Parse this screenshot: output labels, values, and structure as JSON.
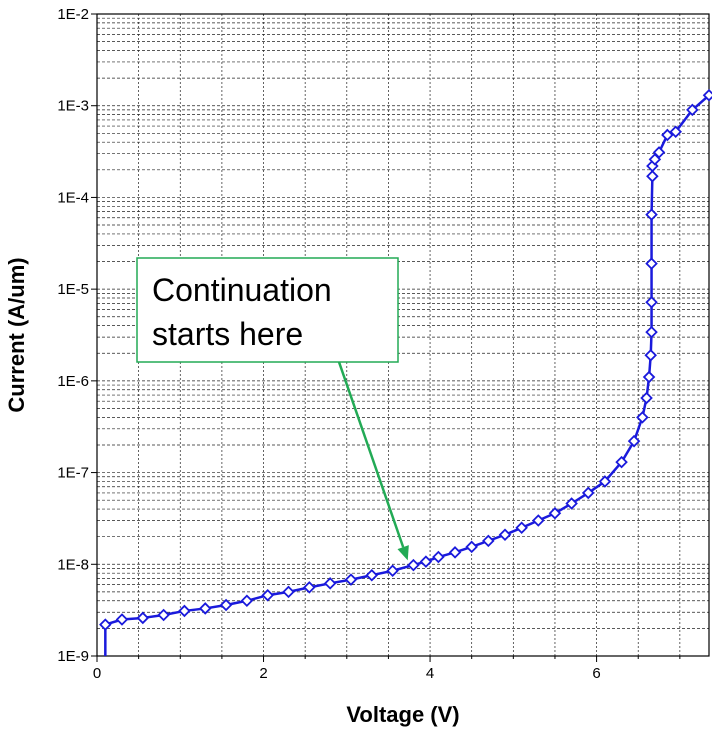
{
  "chart_data": {
    "type": "line",
    "xlabel": "Voltage (V)",
    "ylabel": "Current (A/um)",
    "xlim": [
      0,
      7.35
    ],
    "ylim": [
      1e-09,
      0.01
    ],
    "y_scale": "log",
    "grid": true,
    "x_ticks": [
      0,
      2,
      4,
      6
    ],
    "x_tick_labels": [
      "0",
      "2",
      "4",
      "6"
    ],
    "y_ticks": [
      1e-09,
      1e-08,
      1e-07,
      1e-06,
      1e-05,
      0.0001,
      0.001,
      0.01
    ],
    "y_tick_labels": [
      "1E-9",
      "1E-8",
      "1E-7",
      "1E-6",
      "1E-5",
      "1E-4",
      "1E-3",
      "1E-2"
    ],
    "line_color": "#1a1adc",
    "annotation": {
      "lines": [
        "Continuation",
        "starts here"
      ],
      "box_border_color": "#22aa55",
      "arrow_color": "#22aa55",
      "points_to": {
        "x": 3.78,
        "y": 9.5e-09
      }
    },
    "series": [
      {
        "x": [
          0.1,
          0.1,
          0.3,
          0.55,
          0.8,
          1.05,
          1.3,
          1.55,
          1.8,
          2.05,
          2.3,
          2.55,
          2.8,
          3.05,
          3.3,
          3.55,
          3.8,
          3.95,
          4.1,
          4.3,
          4.5,
          4.7,
          4.9,
          5.1,
          5.3,
          5.5,
          5.7,
          5.9,
          6.1,
          6.3,
          6.45,
          6.55,
          6.6,
          6.63,
          6.65,
          6.66,
          6.66,
          6.66,
          6.66,
          6.67,
          6.67,
          6.7,
          6.75,
          6.85,
          6.95,
          7.15,
          7.35
        ],
        "y": [
          1e-09,
          2.2e-09,
          2.5e-09,
          2.6e-09,
          2.8e-09,
          3.1e-09,
          3.3e-09,
          3.6e-09,
          4e-09,
          4.6e-09,
          5e-09,
          5.6e-09,
          6.2e-09,
          6.8e-09,
          7.6e-09,
          8.5e-09,
          9.8e-09,
          1.07e-08,
          1.2e-08,
          1.35e-08,
          1.55e-08,
          1.8e-08,
          2.1e-08,
          2.5e-08,
          3e-08,
          3.6e-08,
          4.6e-08,
          6e-08,
          8e-08,
          1.3e-07,
          2.2e-07,
          4e-07,
          6.5e-07,
          1.1e-06,
          1.9e-06,
          3.4e-06,
          7.2e-06,
          1.9e-05,
          6.5e-05,
          0.00017,
          0.00022,
          0.00026,
          0.00031,
          0.00048,
          0.00052,
          0.0009,
          0.0013
        ],
        "marker": "diamond"
      }
    ]
  }
}
